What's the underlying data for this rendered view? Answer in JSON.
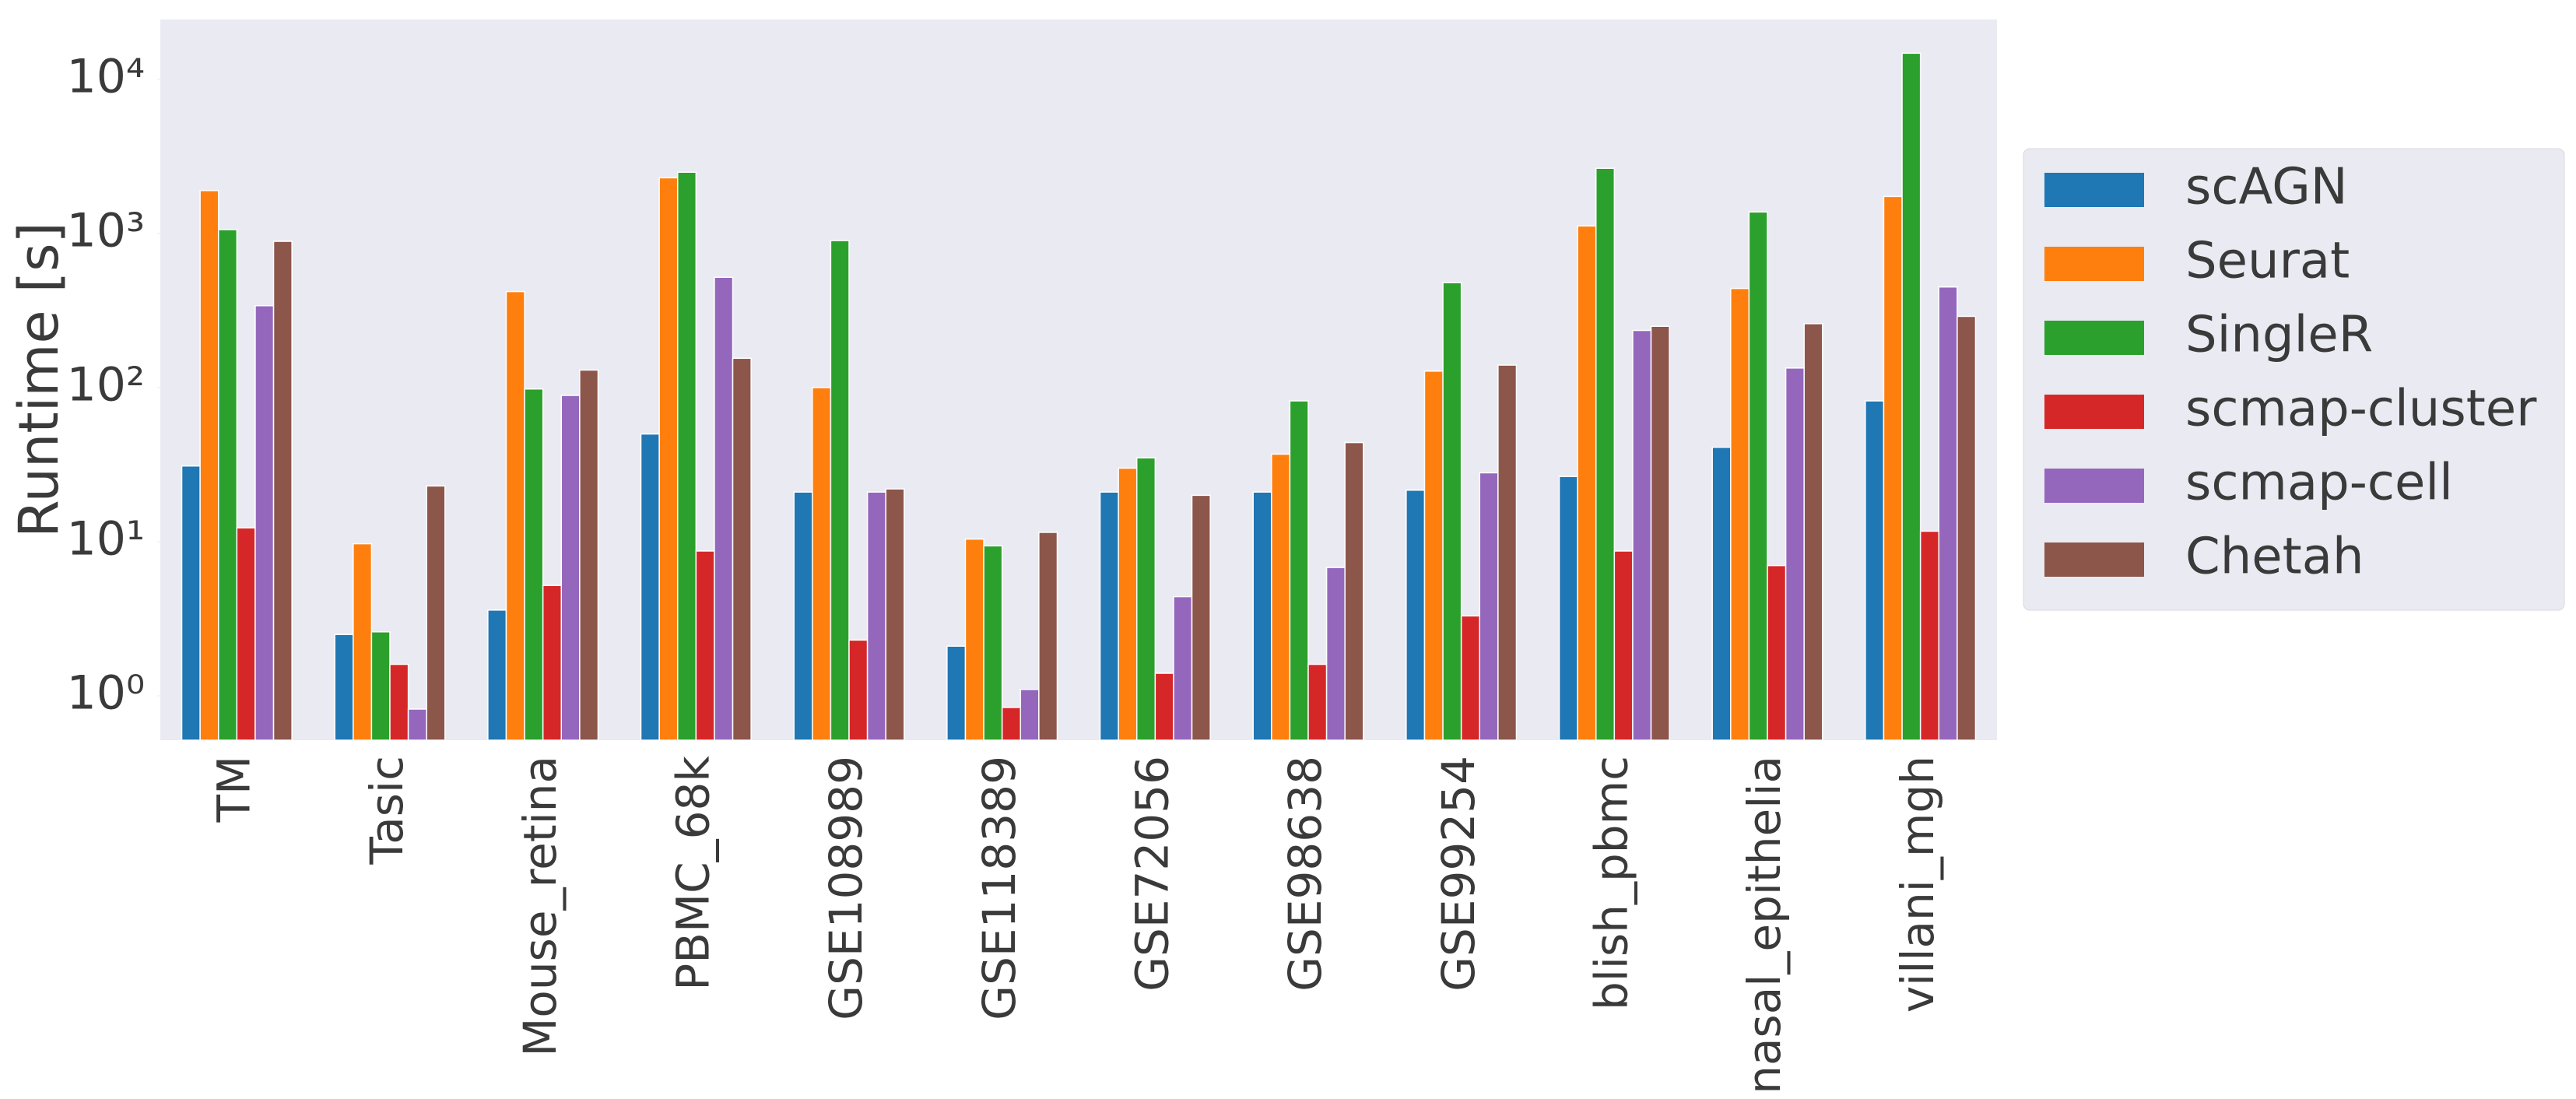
{
  "chart_data": {
    "type": "bar",
    "y_label": "Runtime  [s]",
    "log_scale": true,
    "grid": false,
    "legend_position": "right",
    "categories": [
      "TM",
      "Tasic",
      "Mouse_retina",
      "PBMC_68k",
      "GSE108989",
      "GSE118389",
      "GSE72056",
      "GSE98638",
      "GSE99254",
      "blish_pbmc",
      "nasal_epithelia",
      "villani_mgh"
    ],
    "series": [
      {
        "name": "scAGN",
        "color": "#1f77b4",
        "values": [
          31,
          2.5,
          3.6,
          50,
          21,
          2.1,
          21,
          21,
          21.6,
          26.5,
          41,
          82
        ]
      },
      {
        "name": "Seurat",
        "color": "#ff7f0e",
        "values": [
          1900,
          9.7,
          420,
          2300,
          100,
          10.4,
          30,
          37,
          128,
          1120,
          440,
          1740
        ]
      },
      {
        "name": "SingleR",
        "color": "#2ca02c",
        "values": [
          1060,
          2.6,
          98,
          2500,
          900,
          9.4,
          35,
          82,
          480,
          2650,
          1380,
          14800
        ]
      },
      {
        "name": "scmap-cluster",
        "color": "#d62728",
        "values": [
          12.3,
          1.6,
          5.2,
          8.7,
          2.3,
          0.84,
          1.4,
          1.6,
          3.3,
          8.7,
          7,
          11.7
        ]
      },
      {
        "name": "scmap-cell",
        "color": "#9467bd",
        "values": [
          340,
          0.82,
          89,
          520,
          21,
          1.1,
          4.4,
          6.8,
          28,
          235,
          134,
          450
        ]
      },
      {
        "name": "Chetah",
        "color": "#8c564b",
        "values": [
          890,
          23,
          130,
          155,
          22,
          11.5,
          20,
          44,
          140,
          250,
          260,
          290
        ]
      }
    ],
    "ylim": [
      0.515,
      24500
    ],
    "yticks": [
      {
        "value": 1,
        "label": "10⁰"
      },
      {
        "value": 10,
        "label": "10¹"
      },
      {
        "value": 100,
        "label": "10²"
      },
      {
        "value": 1000,
        "label": "10³"
      },
      {
        "value": 10000,
        "label": "10⁴"
      }
    ]
  }
}
